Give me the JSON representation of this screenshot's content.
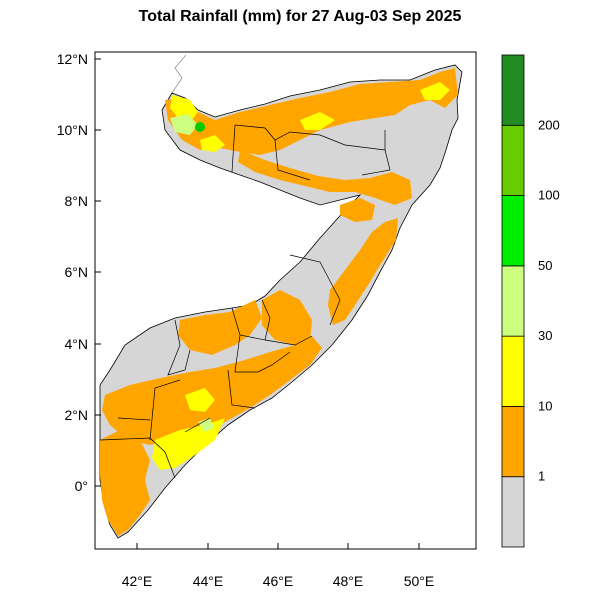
{
  "title": "Total Rainfall (mm) for 27 Aug-03 Sep 2025",
  "lon_ticks": [
    "42°E",
    "44°E",
    "46°E",
    "48°E",
    "50°E"
  ],
  "lat_ticks": [
    "0°",
    "2°N",
    "4°N",
    "6°N",
    "8°N",
    "10°N",
    "12°N"
  ],
  "legend": {
    "bins": [
      {
        "label": "1",
        "color": "#d6d6d6"
      },
      {
        "label": "10",
        "color": "#ffa500"
      },
      {
        "label": "30",
        "color": "#ffff00"
      },
      {
        "label": "50",
        "color": "#ccff80"
      },
      {
        "label": "100",
        "color": "#00ee00"
      },
      {
        "label": "200",
        "color": "#66cc00"
      },
      {
        "label": "",
        "color": "#228b22"
      }
    ]
  },
  "colors": {
    "land_dry": "#d6d6d6",
    "rain_1_10": "#ffa500",
    "rain_10_30": "#ffff00",
    "rain_30_50": "#ccff80",
    "rain_50_100": "#00ee00",
    "boundary": "#000000"
  }
}
